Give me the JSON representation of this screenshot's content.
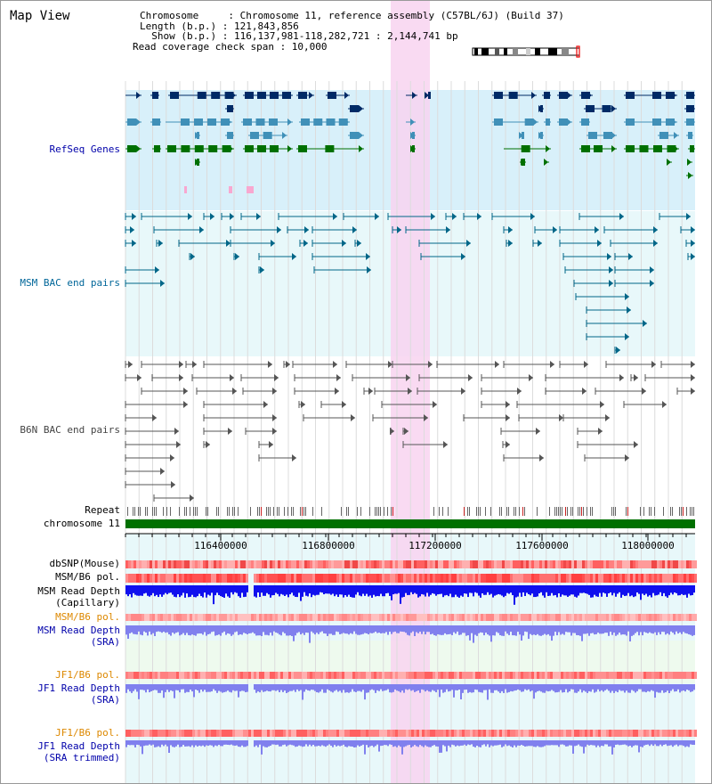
{
  "window": {
    "title": "Map View"
  },
  "info": {
    "chromosome_line": "Chromosome     : Chromosome 11, reference assembly (C57BL/6J) (Build 37)",
    "length_line": "Length (b.p.) : 121,843,856",
    "show_line": "  Show (b.p.) : 116,137,981-118,282,721 : 2,144,741 bp",
    "coverage_line": "Read coverage check span : 10,000"
  },
  "tracks": {
    "refseq": {
      "label": "RefSeq Genes",
      "color": "#0000aa"
    },
    "msm_bac": {
      "label": "MSM BAC end pairs",
      "color": "#0066aa"
    },
    "b6n_bac": {
      "label": "B6N BAC end pairs",
      "color": "#444444"
    },
    "repeat": {
      "label": "Repeat"
    },
    "chromosome": {
      "label": "chromosome 11"
    },
    "dbsnp": {
      "label": "dbSNP(Mouse)"
    },
    "msm_b6_pol_1": {
      "label": "MSM/B6 pol."
    },
    "msm_depth_cap": {
      "label": "MSM Read Depth",
      "sub": "(Capillary)"
    },
    "msm_b6_pol_2": {
      "label": "MSM/B6 pol.",
      "color": "#dd8800"
    },
    "msm_depth_sra": {
      "label": "MSM Read Depth",
      "sub": "(SRA)",
      "color": "#0000aa"
    },
    "jf1_b6_pol_1": {
      "label": "JF1/B6 pol.",
      "color": "#dd8800"
    },
    "jf1_depth_sra": {
      "label": "JF1 Read Depth",
      "sub": "(SRA)",
      "color": "#0000aa"
    },
    "jf1_b6_pol_2": {
      "label": "JF1/B6 pol.",
      "color": "#dd8800"
    },
    "jf1_depth_trim": {
      "label": "JF1 Read Depth",
      "sub": "(SRA trimmed)",
      "color": "#0000aa"
    }
  },
  "axis": {
    "ticks": [
      "116400000",
      "116800000",
      "117200000",
      "117600000",
      "118000000"
    ]
  },
  "colors": {
    "highlight": "#f8d4f0",
    "refseq_bg": "#d8f0fa",
    "msm_bg": "#e8f8fa",
    "refseq_dark": "#002a66",
    "refseq_mid": "#4090b8",
    "refseq_green": "#007000",
    "chromosome": "#007000",
    "depth_blue": "#1010ee",
    "depth_light": "#8080ee"
  }
}
